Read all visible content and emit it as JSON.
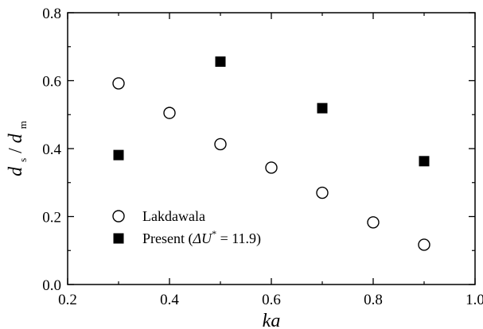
{
  "chart_data": {
    "type": "scatter",
    "title": "",
    "xlabel": "ka",
    "ylabel": {
      "d1": "d",
      "sub1": "s",
      "slash": "/",
      "d2": "d",
      "sub2": "m"
    },
    "xlim": [
      0.2,
      1.0
    ],
    "ylim": [
      0.0,
      0.8
    ],
    "xticks": [
      0.2,
      0.4,
      0.6,
      0.8,
      1.0
    ],
    "yticks": [
      0.0,
      0.2,
      0.4,
      0.6,
      0.8
    ],
    "xtick_labels": [
      "0.2",
      "0.4",
      "0.6",
      "0.8",
      "1.0"
    ],
    "ytick_labels": [
      "0.0",
      "0.2",
      "0.4",
      "0.6",
      "0.8"
    ],
    "grid": false,
    "legend_position": "bottom-left",
    "series": [
      {
        "name": "Lakdawala",
        "marker": "open-circle",
        "color": "#000000",
        "points": [
          {
            "x": 0.3,
            "y": 0.592
          },
          {
            "x": 0.4,
            "y": 0.505
          },
          {
            "x": 0.5,
            "y": 0.413
          },
          {
            "x": 0.6,
            "y": 0.344
          },
          {
            "x": 0.7,
            "y": 0.27
          },
          {
            "x": 0.8,
            "y": 0.183
          },
          {
            "x": 0.9,
            "y": 0.117
          }
        ]
      },
      {
        "name": "Present",
        "legend_parts": {
          "main": "Present (",
          "delta": "ΔU",
          "sup": "*",
          "value": " = 11.9)"
        },
        "marker": "filled-square",
        "color": "#000000",
        "points": [
          {
            "x": 0.3,
            "y": 0.381
          },
          {
            "x": 0.5,
            "y": 0.656
          },
          {
            "x": 0.7,
            "y": 0.519
          },
          {
            "x": 0.9,
            "y": 0.363
          }
        ]
      }
    ]
  }
}
